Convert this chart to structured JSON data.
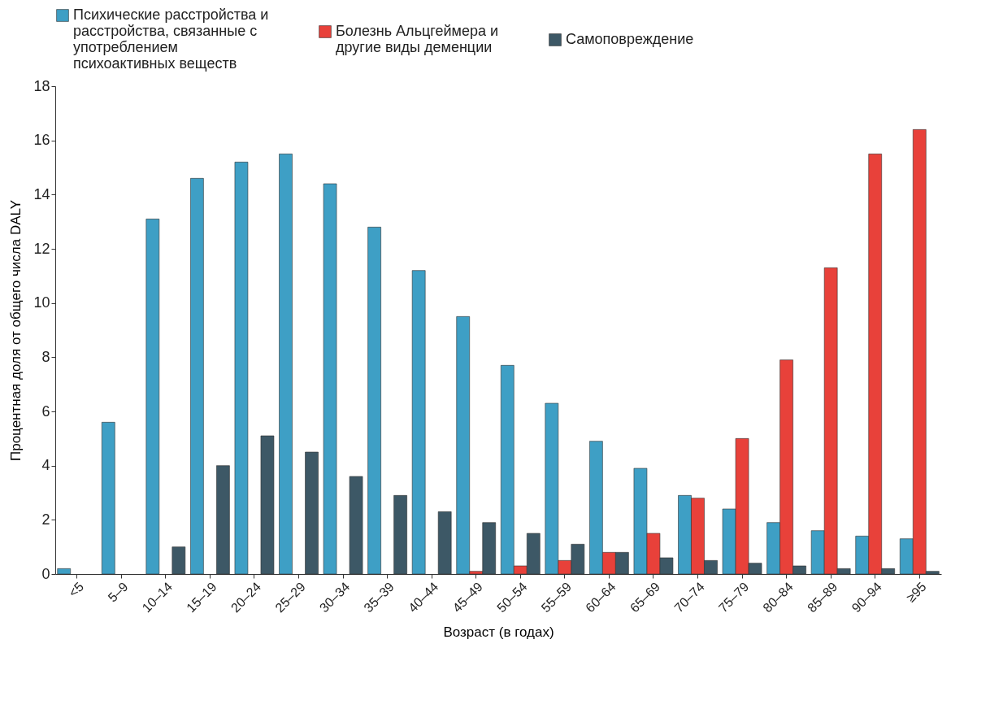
{
  "chart_data": {
    "type": "bar",
    "xlabel": "Возраст (в годах)",
    "ylabel": "Процентная доля от общего числа DALY",
    "categories": [
      "<5",
      "5–9",
      "10–14",
      "15–19",
      "20–24",
      "25–29",
      "30–34",
      "35–39",
      "40–44",
      "45–49",
      "50–54",
      "55–59",
      "60–64",
      "65–69",
      "70–74",
      "75–79",
      "80–84",
      "85–89",
      "90–94",
      "≥95"
    ],
    "series": [
      {
        "name": "Психические расстройства и расстройства, связанные с употреблением психоактивных веществ",
        "color": "#3e9fc5",
        "values": [
          0.2,
          5.6,
          13.1,
          14.6,
          15.2,
          15.5,
          14.4,
          12.8,
          11.2,
          9.5,
          7.7,
          6.3,
          4.9,
          3.9,
          2.9,
          2.4,
          1.9,
          1.6,
          1.4,
          1.3
        ]
      },
      {
        "name": "Болезнь Альцгеймера и другие виды деменции",
        "color": "#e8413a",
        "values": [
          null,
          null,
          null,
          null,
          null,
          null,
          null,
          null,
          null,
          0.1,
          0.3,
          0.5,
          0.8,
          1.5,
          2.8,
          5.0,
          7.9,
          11.3,
          15.5,
          16.4
        ]
      },
      {
        "name": "Самоповреждение",
        "color": "#3d5866",
        "values": [
          null,
          null,
          1.0,
          4.0,
          5.1,
          4.5,
          3.6,
          2.9,
          2.3,
          1.9,
          1.5,
          1.1,
          0.8,
          0.6,
          0.5,
          0.4,
          0.3,
          0.2,
          0.2,
          0.1
        ]
      }
    ],
    "ylim": [
      0,
      18
    ],
    "yticks": [
      0,
      2,
      4,
      6,
      8,
      10,
      12,
      14,
      16,
      18
    ],
    "grid": false,
    "legend": "top"
  }
}
